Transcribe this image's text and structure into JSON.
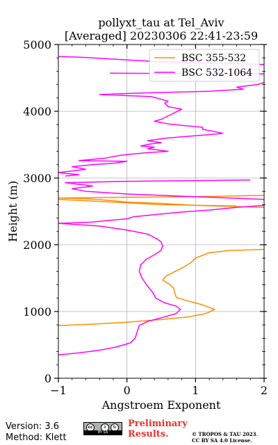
{
  "chart_data": {
    "type": "line",
    "title_line1": "pollyxt_tau at Tel_Aviv",
    "title_line2": "[Averaged] 20230306 22:41-23:59",
    "xlabel": "Angstroem Exponent",
    "ylabel": "Height (m)",
    "xlim": [
      -1,
      2
    ],
    "ylim": [
      0,
      5000
    ],
    "xticks": [
      -1,
      0,
      1,
      2
    ],
    "yticks": [
      0,
      1000,
      2000,
      3000,
      4000,
      5000
    ],
    "grid": true,
    "legend_position": "top-right",
    "series": [
      {
        "name": "BSC 355-532",
        "color": "#ff8c00",
        "points": [
          [
            -1.0,
            790
          ],
          [
            -0.5,
            810
          ],
          [
            0.0,
            840
          ],
          [
            0.5,
            880
          ],
          [
            0.9,
            920
          ],
          [
            1.15,
            970
          ],
          [
            1.28,
            1030
          ],
          [
            1.1,
            1100
          ],
          [
            0.85,
            1170
          ],
          [
            0.72,
            1210
          ],
          [
            0.7,
            1270
          ],
          [
            0.68,
            1350
          ],
          [
            0.62,
            1410
          ],
          [
            0.52,
            1470
          ],
          [
            0.57,
            1530
          ],
          [
            0.68,
            1590
          ],
          [
            0.82,
            1660
          ],
          [
            0.93,
            1730
          ],
          [
            1.0,
            1800
          ],
          [
            1.2,
            1880
          ],
          [
            1.5,
            1915
          ],
          [
            2.0,
            1930
          ],
          [
            null,
            null
          ],
          [
            1.6,
            2580
          ],
          [
            0.5,
            2600
          ],
          [
            -0.2,
            2640
          ],
          [
            -1.0,
            2680
          ],
          [
            null,
            null
          ],
          [
            2.0,
            2560
          ],
          [
            1.0,
            2590
          ],
          [
            0.5,
            2620
          ],
          [
            0.0,
            2640
          ],
          [
            -0.2,
            2660
          ],
          [
            -0.6,
            2690
          ],
          [
            -1.0,
            2700
          ],
          [
            0.0,
            2710
          ],
          [
            1.0,
            2720
          ],
          [
            2.0,
            2740
          ]
        ]
      },
      {
        "name": "BSC 532-1064",
        "color": "#ff00ff",
        "points": [
          [
            -1.0,
            350
          ],
          [
            -0.7,
            380
          ],
          [
            -0.4,
            420
          ],
          [
            -0.15,
            470
          ],
          [
            0.05,
            530
          ],
          [
            0.12,
            600
          ],
          [
            0.15,
            700
          ],
          [
            0.18,
            790
          ],
          [
            0.3,
            850
          ],
          [
            0.55,
            920
          ],
          [
            0.72,
            970
          ],
          [
            0.78,
            1030
          ],
          [
            0.72,
            1080
          ],
          [
            0.55,
            1130
          ],
          [
            0.42,
            1200
          ],
          [
            0.38,
            1280
          ],
          [
            0.3,
            1380
          ],
          [
            0.22,
            1500
          ],
          [
            0.18,
            1600
          ],
          [
            0.2,
            1700
          ],
          [
            0.28,
            1780
          ],
          [
            0.42,
            1860
          ],
          [
            0.5,
            1920
          ],
          [
            0.52,
            1980
          ],
          [
            0.5,
            2040
          ],
          [
            0.45,
            2080
          ],
          [
            0.3,
            2160
          ],
          [
            0.0,
            2220
          ],
          [
            -0.4,
            2280
          ],
          [
            -1.0,
            2320
          ],
          [
            -0.5,
            2340
          ],
          [
            -0.3,
            2360
          ],
          [
            0.0,
            2390
          ],
          [
            0.1,
            2420
          ],
          [
            0.3,
            2440
          ],
          [
            0.5,
            2460
          ],
          [
            0.8,
            2490
          ],
          [
            1.2,
            2520
          ],
          [
            1.6,
            2560
          ],
          [
            2.0,
            2590
          ],
          [
            null,
            null
          ],
          [
            2.0,
            2680
          ],
          [
            1.0,
            2720
          ],
          [
            0.0,
            2760
          ],
          [
            -0.6,
            2800
          ],
          [
            -0.8,
            2840
          ],
          [
            -0.5,
            2880
          ],
          [
            -0.9,
            2930
          ],
          [
            0.0,
            2950
          ],
          [
            1.8,
            2970
          ],
          [
            null,
            null
          ],
          [
            -0.9,
            3030
          ],
          [
            -0.7,
            3050
          ],
          [
            -1.0,
            3080
          ],
          [
            -0.6,
            3130
          ],
          [
            -0.8,
            3170
          ],
          [
            -0.5,
            3200
          ],
          [
            -0.2,
            3220
          ],
          [
            0.0,
            3250
          ],
          [
            -0.7,
            3260
          ],
          [
            -0.3,
            3300
          ],
          [
            -0.1,
            3340
          ],
          [
            0.1,
            3360
          ],
          [
            0.3,
            3380
          ],
          [
            0.6,
            3400
          ],
          [
            0.3,
            3440
          ],
          [
            0.4,
            3460
          ],
          [
            0.2,
            3480
          ],
          [
            0.35,
            3510
          ],
          [
            0.5,
            3530
          ],
          [
            0.3,
            3560
          ],
          [
            0.6,
            3600
          ],
          [
            1.2,
            3650
          ],
          [
            1.4,
            3670
          ],
          [
            1.1,
            3730
          ],
          [
            1.1,
            3760
          ],
          [
            0.8,
            3790
          ],
          [
            0.6,
            3810
          ],
          [
            0.4,
            3850
          ],
          [
            0.5,
            3880
          ],
          [
            0.8,
            4030
          ],
          [
            0.6,
            4070
          ],
          [
            0.55,
            4120
          ],
          [
            0.6,
            4150
          ],
          [
            0.5,
            4180
          ],
          [
            0.35,
            4220
          ],
          [
            -0.4,
            4250
          ],
          [
            0.1,
            4270
          ],
          [
            1.2,
            4300
          ],
          [
            1.7,
            4330
          ],
          [
            1.6,
            4360
          ],
          [
            1.9,
            4400
          ],
          [
            2.0,
            4430
          ],
          [
            null,
            null
          ],
          [
            2.0,
            4560
          ],
          [
            -0.25,
            4570
          ],
          [
            null,
            null
          ],
          [
            2.0,
            4700
          ],
          [
            0.5,
            4740
          ],
          [
            -0.5,
            4800
          ],
          [
            -0.7,
            4810
          ],
          [
            -1.0,
            4820
          ]
        ]
      }
    ]
  },
  "footer": {
    "version": "Version: 3.6",
    "method": "Method: Klett",
    "preliminary_line1": "Preliminary",
    "preliminary_line2": "Results.",
    "copyright_line1": "© TROPOS & TAU 2023.",
    "copyright_line2": "CC BY SA 4.0 License.",
    "license_badge_text": "BY SA"
  }
}
